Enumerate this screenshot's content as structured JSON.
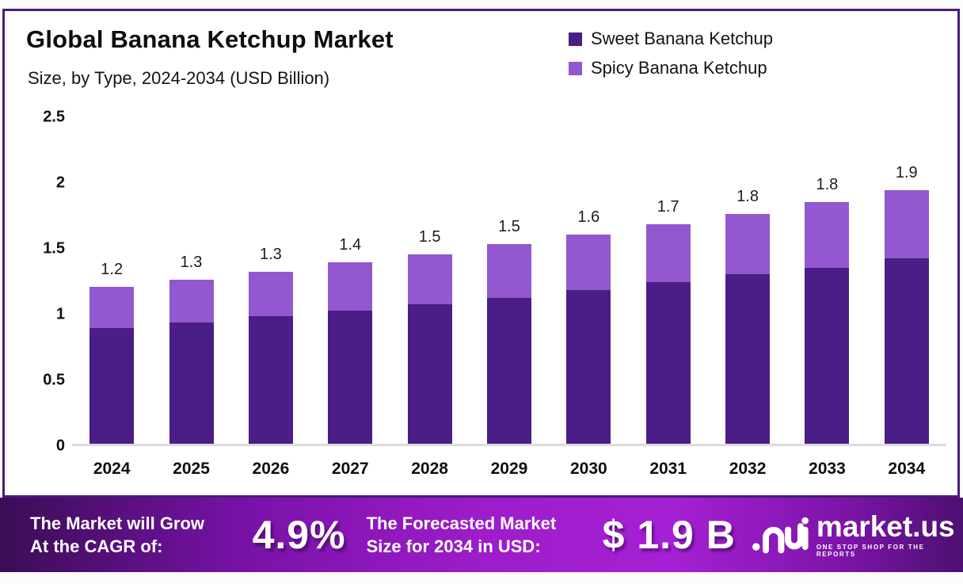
{
  "header": {
    "title": "Global Banana Ketchup Market",
    "subtitle": "Size, by Type, 2024-2034 (USD Billion)"
  },
  "colors": {
    "sweet": "#4a1d87",
    "spicy": "#9357d0",
    "card_border": "#4a1b7d",
    "baseline": "#dcdcdc",
    "banner_gradient": [
      "#3a0d55",
      "#7712a6",
      "#9e1cca",
      "#a520d4",
      "#7c14a7",
      "#4c1070"
    ]
  },
  "chart_data": {
    "type": "bar",
    "stacked": true,
    "title": "Global Banana Ketchup Market",
    "subtitle": "Size, by Type, 2024-2034 (USD Billion)",
    "categories": [
      "2024",
      "2025",
      "2026",
      "2027",
      "2028",
      "2029",
      "2030",
      "2031",
      "2032",
      "2033",
      "2034"
    ],
    "series": [
      {
        "name": "Sweet Banana Ketchup",
        "color": "#4a1d87",
        "values": [
          0.88,
          0.92,
          0.97,
          1.01,
          1.06,
          1.11,
          1.17,
          1.23,
          1.29,
          1.34,
          1.41
        ]
      },
      {
        "name": "Spicy Banana Ketchup",
        "color": "#9357d0",
        "values": [
          0.31,
          0.33,
          0.34,
          0.37,
          0.38,
          0.41,
          0.42,
          0.44,
          0.46,
          0.5,
          0.52
        ]
      }
    ],
    "total_labels": [
      "1.2",
      "1.3",
      "1.3",
      "1.4",
      "1.5",
      "1.5",
      "1.6",
      "1.7",
      "1.8",
      "1.8",
      "1.9"
    ],
    "xlabel": "",
    "ylabel": "",
    "ylim": [
      0,
      2.5
    ],
    "yticks": [
      0,
      0.5,
      1,
      1.5,
      2,
      2.5
    ],
    "ytick_labels": [
      "0",
      "0.5",
      "1",
      "1.5",
      "2",
      "2.5"
    ],
    "grid": false,
    "legend_position": "top-right"
  },
  "legend": [
    {
      "label": "Sweet Banana Ketchup",
      "color": "#4a1d87"
    },
    {
      "label": "Spicy Banana Ketchup",
      "color": "#9357d0"
    }
  ],
  "footer": {
    "growth_label_line1": "The Market will Grow",
    "growth_label_line2": "At the CAGR of:",
    "cagr_value": "4.9%",
    "forecast_label_line1": "The Forecasted Market",
    "forecast_label_line2": "Size for 2034 in USD:",
    "forecast_value": "$ 1.9 B",
    "brand_name": "market.us",
    "brand_tagline": "ONE STOP SHOP FOR THE REPORTS"
  }
}
